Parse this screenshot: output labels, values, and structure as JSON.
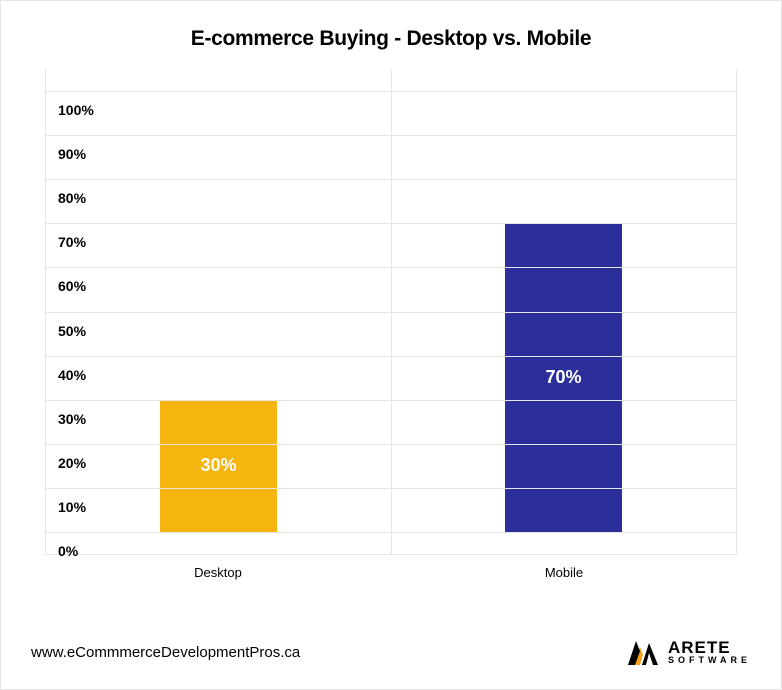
{
  "title": "E-commerce Buying - Desktop vs. Mobile",
  "title_fontsize": 21,
  "chart": {
    "type": "bar",
    "y_axis": {
      "min": -5,
      "max": 105,
      "ticks": [
        100,
        90,
        80,
        70,
        60,
        50,
        40,
        30,
        20,
        10,
        0
      ],
      "tick_suffix": "%",
      "tick_fontsize": 14
    },
    "grid_color": "#e5e5e5",
    "background_color": "#ffffff",
    "bar_width_pct": 34,
    "value_label_fontsize": 18,
    "value_label_color": "#ffffff",
    "x_label_fontsize": 13,
    "series": [
      {
        "category": "Desktop",
        "value": 30,
        "display": "30%",
        "color": "#f6b40e"
      },
      {
        "category": "Mobile",
        "value": 70,
        "display": "70%",
        "color": "#2c2f9b"
      }
    ]
  },
  "footer": {
    "url": "www.eCommmerceDevelopmentPros.ca",
    "url_fontsize": 15,
    "logo": {
      "mark_colors": {
        "black": "#000000",
        "orange": "#f6a11a"
      },
      "top": "ARETE",
      "top_fontsize": 17,
      "bottom": "SOFTWARE",
      "bottom_fontsize": 9
    }
  }
}
